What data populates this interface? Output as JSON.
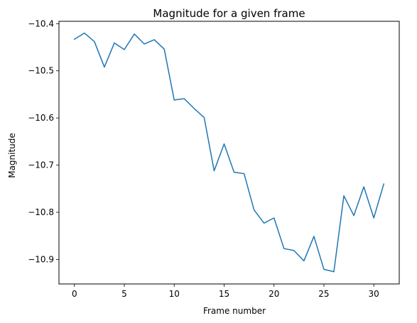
{
  "chart_data": {
    "type": "line",
    "title": "Magnitude for a given frame",
    "xlabel": "Frame number",
    "ylabel": "Magnitude",
    "xlim": [
      -1.55,
      32.55
    ],
    "ylim": [
      -10.952,
      -10.395
    ],
    "xticks": [
      0,
      5,
      10,
      15,
      20,
      25,
      30
    ],
    "yticks": [
      -10.4,
      -10.5,
      -10.6,
      -10.7,
      -10.8,
      -10.9
    ],
    "ytick_labels": [
      "−10.4",
      "−10.5",
      "−10.6",
      "−10.7",
      "−10.8",
      "−10.9"
    ],
    "grid": false,
    "series": [
      {
        "color": "#1f77b4",
        "x": [
          0,
          1,
          2,
          3,
          4,
          5,
          6,
          7,
          8,
          9,
          10,
          11,
          12,
          13,
          14,
          15,
          16,
          17,
          18,
          19,
          20,
          21,
          22,
          23,
          24,
          25,
          26,
          27,
          28,
          29,
          30,
          31
        ],
        "y": [
          -10.433,
          -10.42,
          -10.438,
          -10.492,
          -10.441,
          -10.455,
          -10.422,
          -10.443,
          -10.434,
          -10.454,
          -10.562,
          -10.559,
          -10.58,
          -10.599,
          -10.712,
          -10.655,
          -10.715,
          -10.718,
          -10.795,
          -10.823,
          -10.812,
          -10.877,
          -10.881,
          -10.903,
          -10.851,
          -10.921,
          -10.926,
          -10.765,
          -10.807,
          -10.746,
          -10.812,
          -10.74
        ]
      }
    ]
  }
}
